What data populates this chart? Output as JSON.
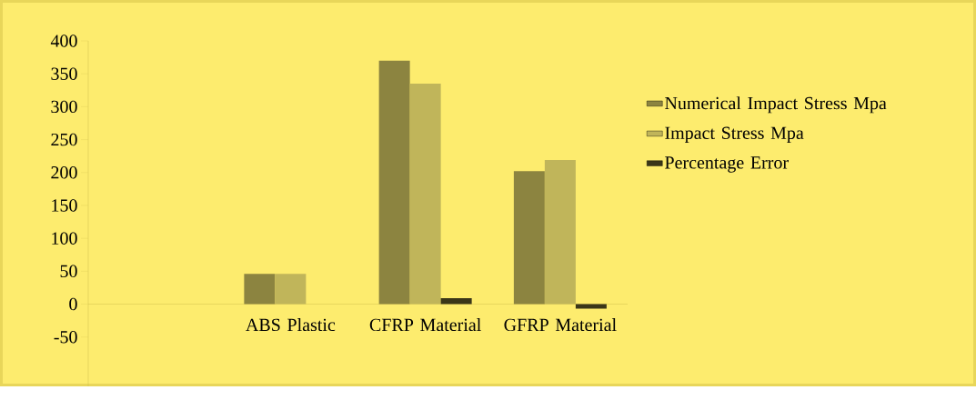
{
  "chart_data": {
    "type": "bar",
    "categories": [
      null,
      "ABS Plastic",
      "CFRP Material",
      "GFRP Material"
    ],
    "series": [
      {
        "name": "Numerical Impact Stress Mpa",
        "color": "#8c8440",
        "values": [
          null,
          46,
          370,
          202
        ]
      },
      {
        "name": "Impact Stress Mpa",
        "color": "#c0b55a",
        "values": [
          null,
          46,
          335,
          219
        ]
      },
      {
        "name": "Percentage Error",
        "color": "#3a3618",
        "values": [
          null,
          null,
          9,
          -7
        ]
      }
    ],
    "ylim": [
      -125,
      400
    ],
    "yticks": [
      -50,
      0,
      50,
      100,
      150,
      200,
      250,
      300,
      350,
      400
    ],
    "grid": false,
    "legend": "right"
  }
}
